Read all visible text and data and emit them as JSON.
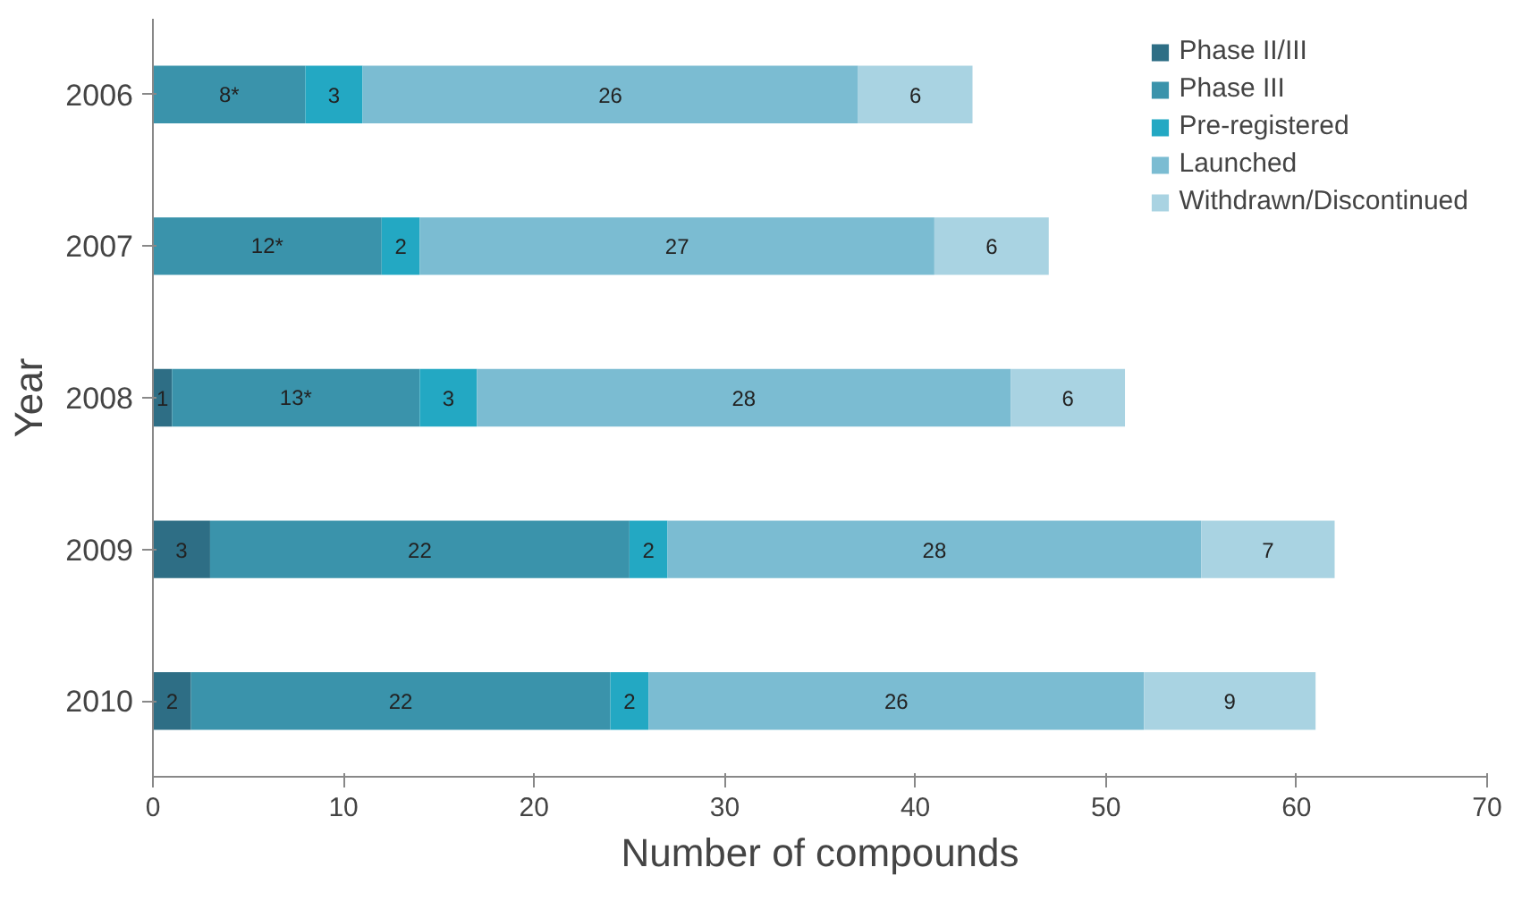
{
  "chart_data": {
    "type": "bar",
    "orientation": "horizontal",
    "stacked": true,
    "xlabel": "Number of compounds",
    "ylabel": "Year",
    "categories": [
      "2006",
      "2007",
      "2008",
      "2009",
      "2010"
    ],
    "series": [
      {
        "name": "Phase II/III",
        "color": "#2e6e85",
        "values": [
          null,
          null,
          1,
          3,
          2
        ],
        "value_labels": [
          null,
          null,
          "1",
          "3",
          "2"
        ]
      },
      {
        "name": "Phase III",
        "color": "#3a93ab",
        "values": [
          8,
          12,
          13,
          22,
          22
        ],
        "value_labels": [
          "8*",
          "12*",
          "13*",
          "22",
          "22"
        ]
      },
      {
        "name": "Pre-registered",
        "color": "#23a8c3",
        "values": [
          3,
          2,
          3,
          2,
          2
        ],
        "value_labels": [
          "3",
          "2",
          "3",
          "2",
          "2"
        ]
      },
      {
        "name": "Launched",
        "color": "#7bbcd2",
        "values": [
          26,
          27,
          28,
          28,
          26
        ],
        "value_labels": [
          "26",
          "27",
          "28",
          "28",
          "26"
        ]
      },
      {
        "name": "Withdrawn/Discontinued",
        "color": "#a9d3e2",
        "values": [
          6,
          6,
          6,
          7,
          9
        ],
        "value_labels": [
          "6",
          "6",
          "6",
          "7",
          "9"
        ]
      }
    ],
    "xlim": [
      0,
      70
    ],
    "xticks": [
      0,
      10,
      20,
      30,
      40,
      50,
      60,
      70
    ],
    "grid": false,
    "legend": "top right"
  }
}
